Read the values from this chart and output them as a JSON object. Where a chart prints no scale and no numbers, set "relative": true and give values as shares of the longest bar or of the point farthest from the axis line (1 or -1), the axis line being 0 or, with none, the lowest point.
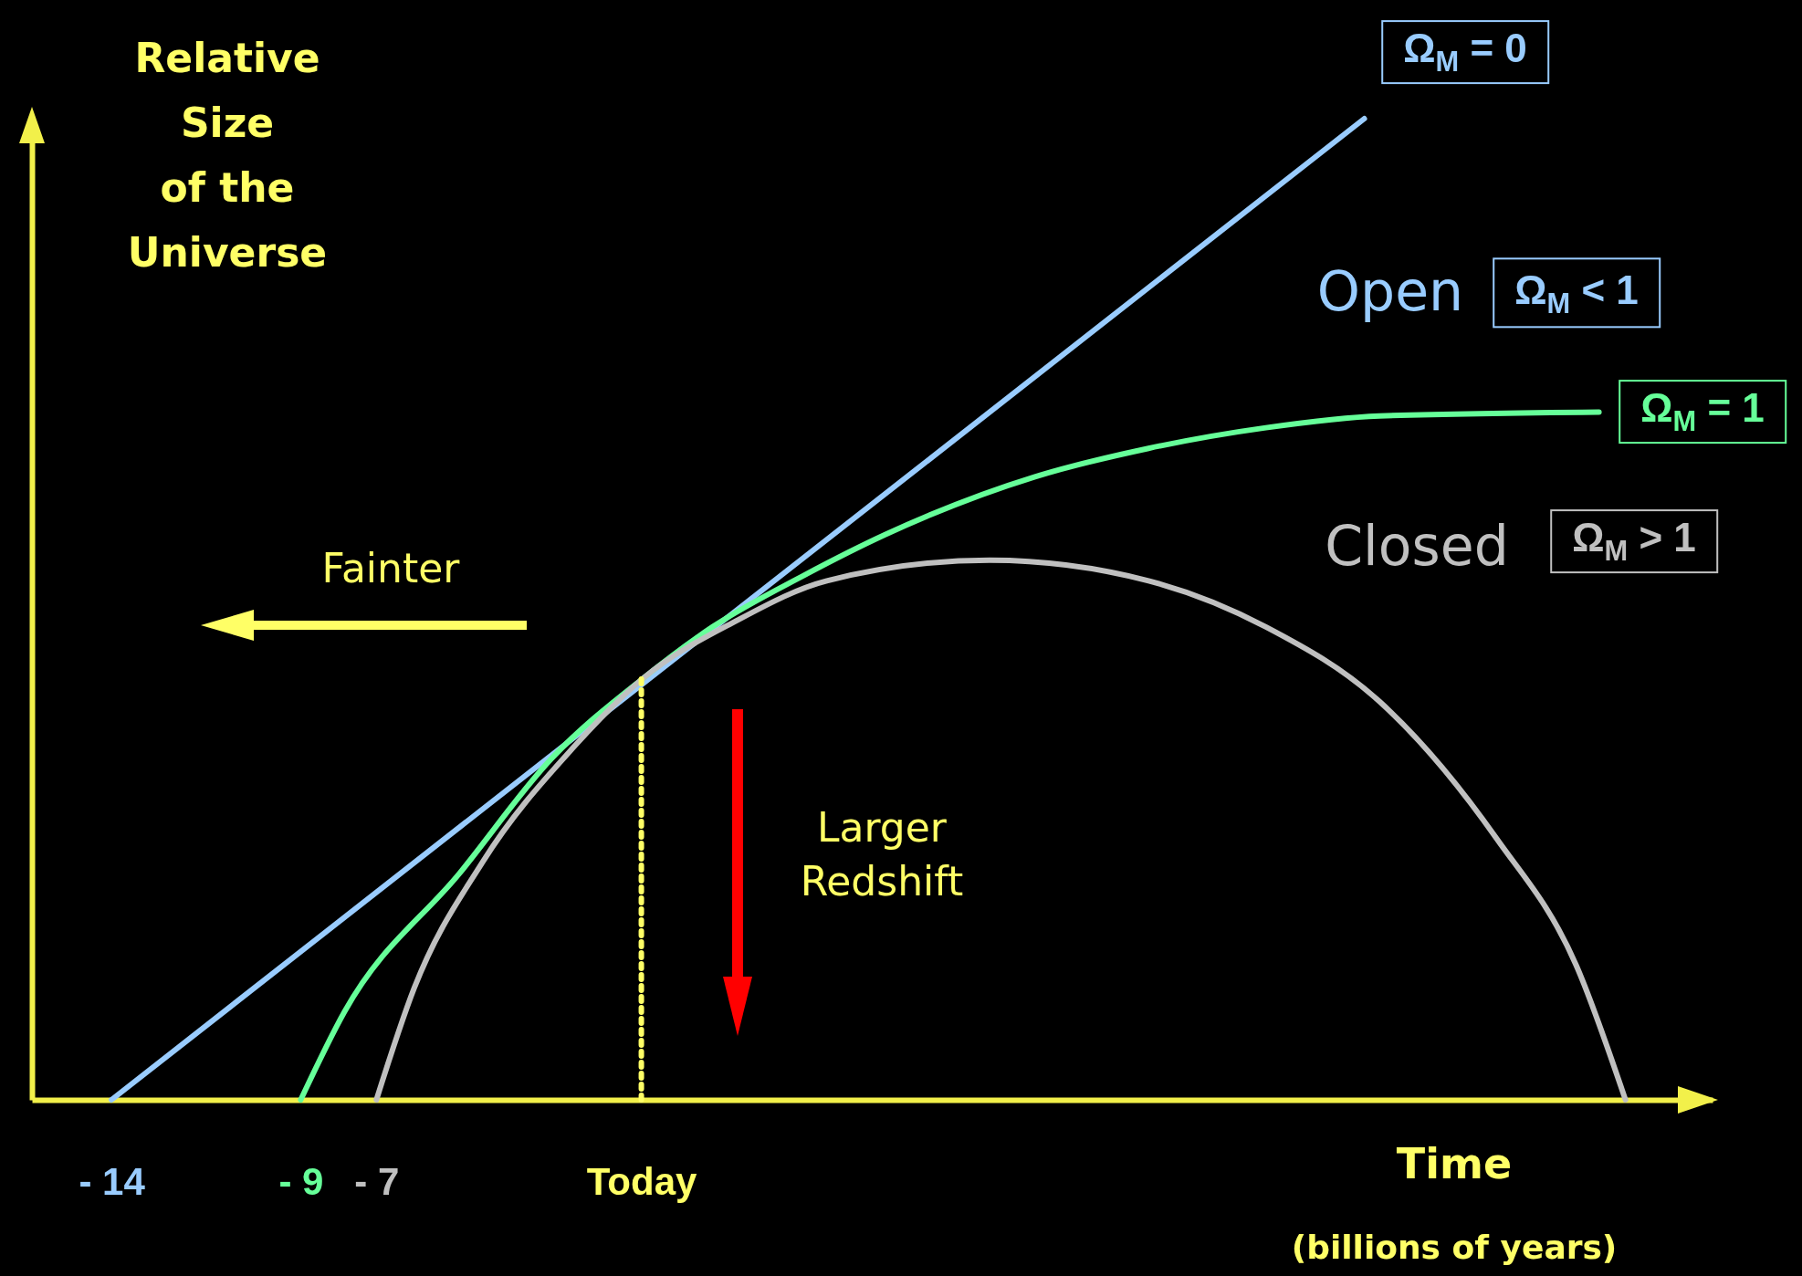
{
  "chart_data": {
    "type": "line",
    "relative": true,
    "ylabel": "Relative Size of the Universe",
    "xlabel": "Time (billions of years)",
    "xlim": [
      -16.1,
      28.3
    ],
    "xticks": [
      {
        "value": -14,
        "label": "- 14"
      },
      {
        "value": -9,
        "label": "- 9"
      },
      {
        "value": -7,
        "label": "- 7"
      },
      {
        "value": 0,
        "label": "Today"
      }
    ],
    "series": [
      {
        "name": "Ω$_{M}$ = 0",
        "color": "#99ccff",
        "x": [
          -14,
          19.1
        ],
        "values": [
          0,
          1
        ]
      },
      {
        "name": "Ω$_{M}$ = 1",
        "color": "#66ff99",
        "x": [
          -9,
          -7.84,
          -4.8,
          -2.37,
          0.06,
          1.88,
          4.32,
          6.44,
          10.4,
          13.4,
          16.5,
          19.5,
          25.3
        ],
        "values": [
          0,
          0.09,
          0.231,
          0.348,
          0.43,
          0.482,
          0.535,
          0.576,
          0.635,
          0.664,
          0.685,
          0.697,
          0.701
        ]
      },
      {
        "name": "Ω$_{M}$ > 1",
        "color": "#c0c0c0",
        "x": [
          -7,
          -6.0,
          -4.2,
          -1.8,
          0.06,
          2.5,
          4.9,
          9.2,
          13.4,
          16.5,
          19.5,
          22.6,
          24.7,
          26.0
        ],
        "values": [
          0,
          0.114,
          0.242,
          0.359,
          0.43,
          0.488,
          0.529,
          0.55,
          0.529,
          0.482,
          0.406,
          0.266,
          0.137,
          0
        ]
      },
      {
        "color": "#ffff66",
        "line_style": "dotted",
        "x": [
          0,
          0
        ],
        "values": [
          0,
          0.43
        ]
      }
    ],
    "annotations": [
      "Open",
      "Ω$_{M}$ < 1",
      "Closed",
      "Fainter",
      "Larger Redshift"
    ],
    "grid": false,
    "marker": "none"
  }
}
